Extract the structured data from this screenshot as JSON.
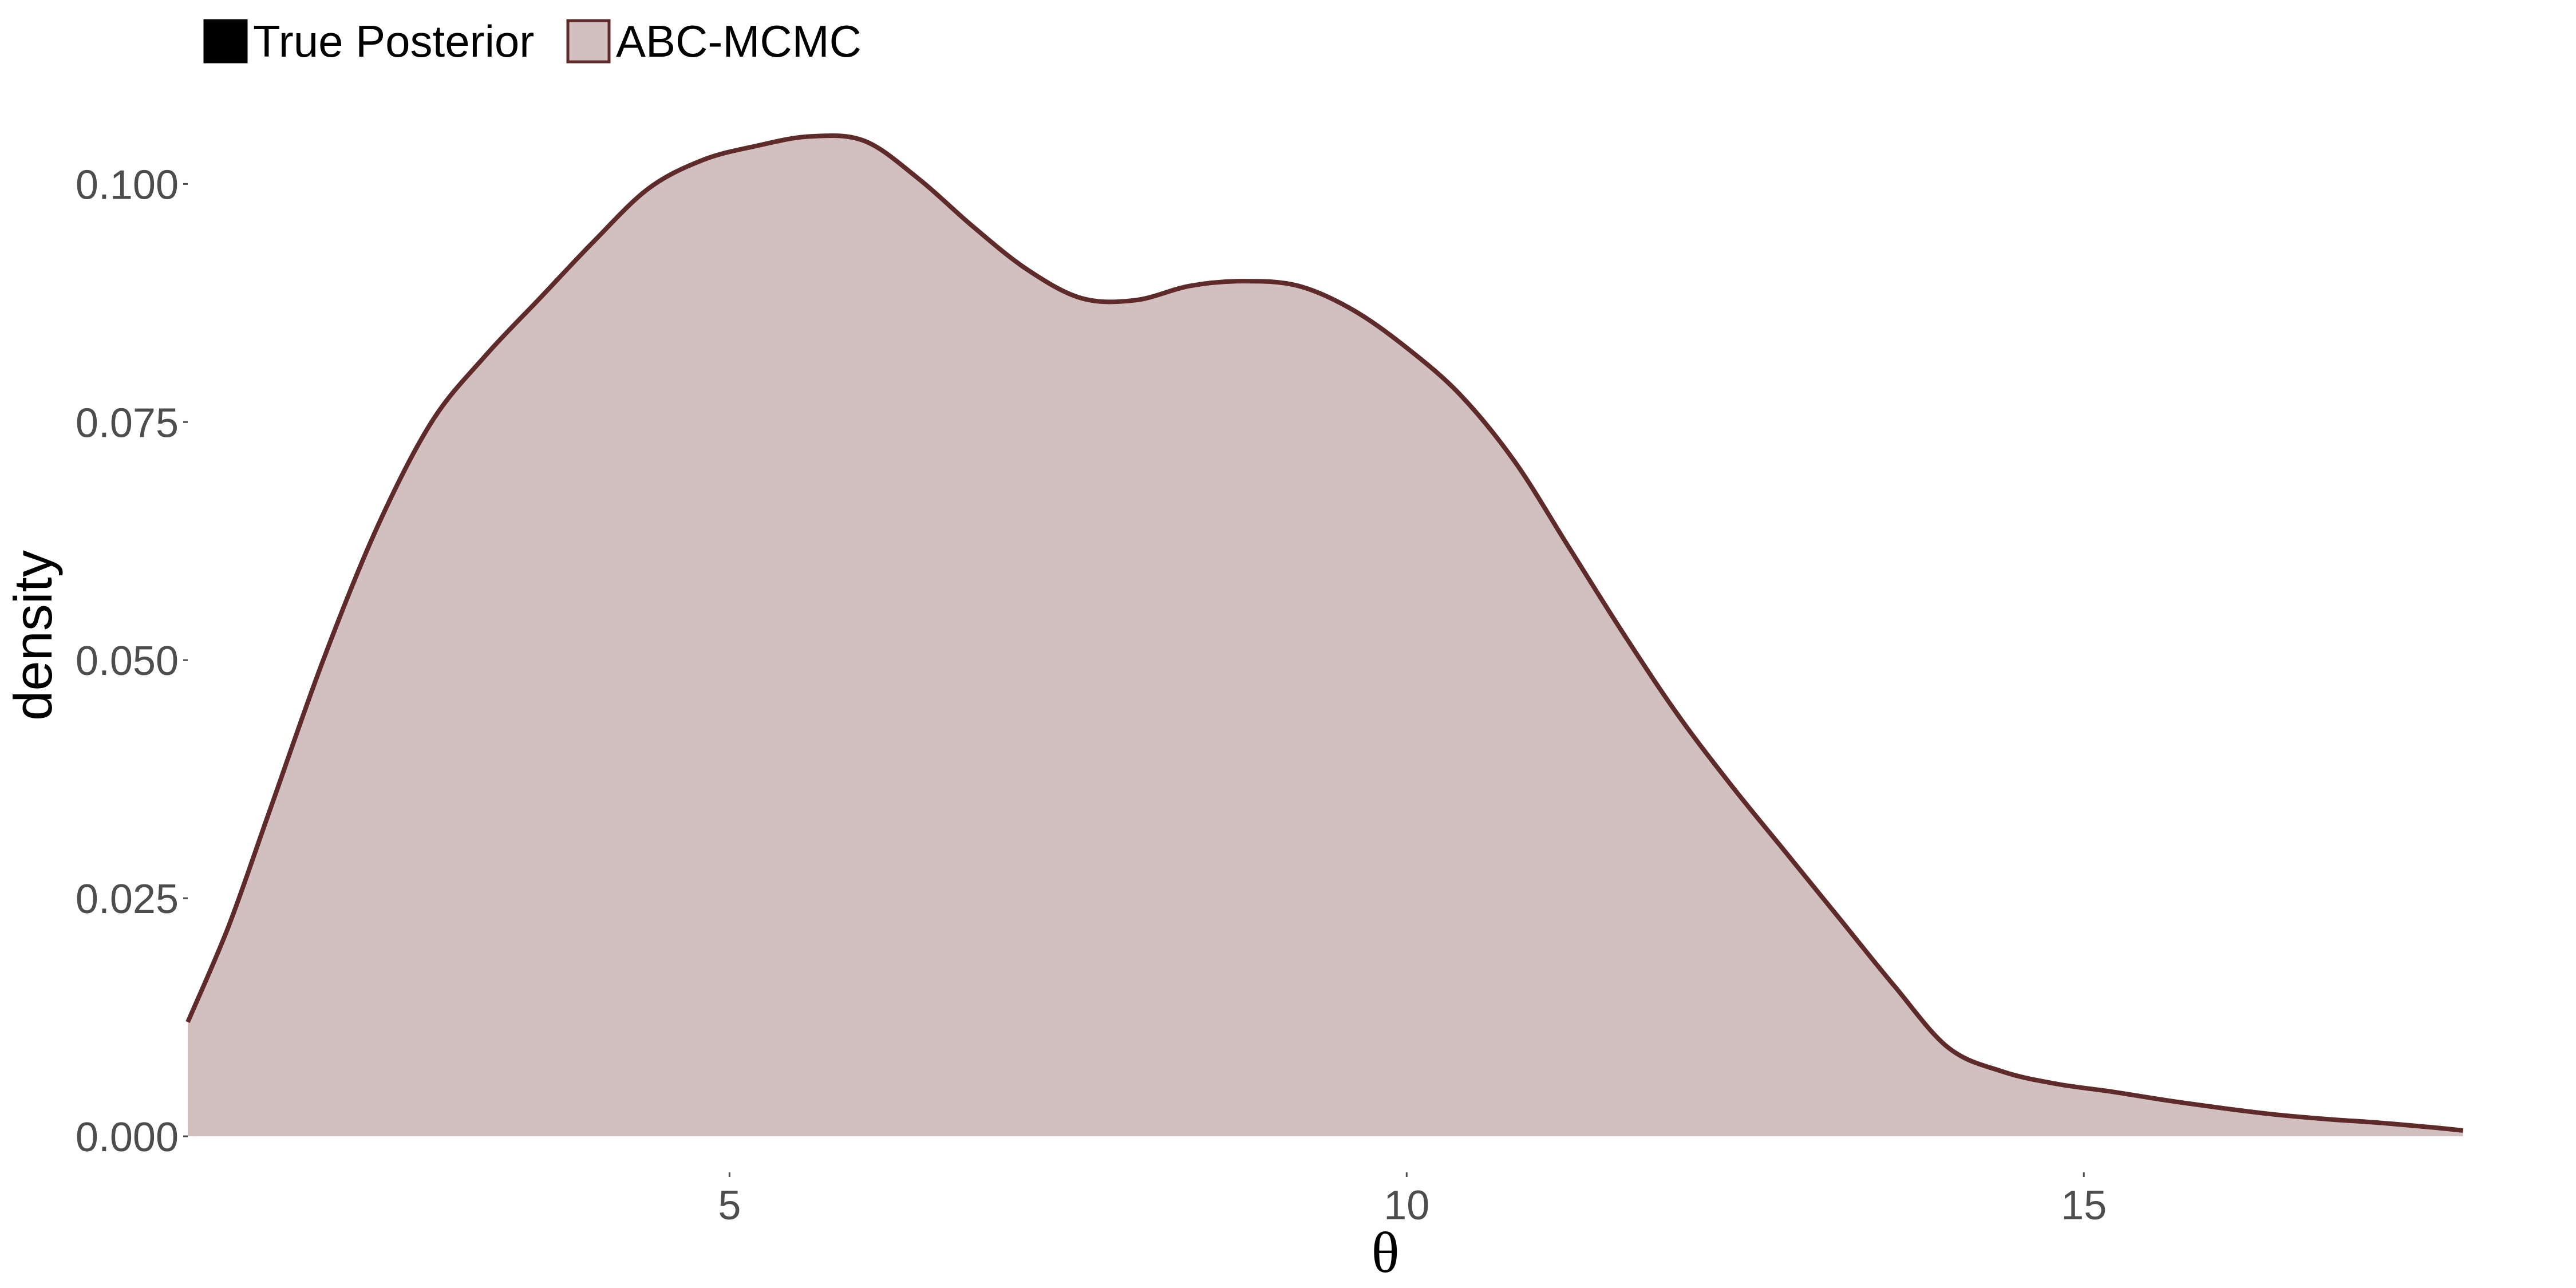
{
  "chart_data": {
    "type": "area",
    "title": "",
    "xlabel": "θ",
    "ylabel": "density",
    "xlim": [
      1,
      18
    ],
    "ylim": [
      0,
      0.11
    ],
    "x_ticks": [
      5,
      10,
      15
    ],
    "x_tick_labels": [
      "5",
      "10",
      "15"
    ],
    "y_ticks": [
      0,
      0.025,
      0.05,
      0.075,
      0.1
    ],
    "y_tick_labels": [
      "0.000",
      "0.025",
      "0.050",
      "0.075",
      "0.100"
    ],
    "grid": false,
    "legend": {
      "position": "top-left",
      "entries": [
        {
          "label": "True Posterior",
          "fill": "#000000",
          "stroke": "#000000"
        },
        {
          "label": "ABC-MCMC",
          "fill": "#d2c0c1",
          "stroke": "#5e2a2a"
        }
      ]
    },
    "series": [
      {
        "name": "ABC-MCMC",
        "fill": "#d2c0c1",
        "stroke": "#5e2a2a",
        "x": [
          1.0,
          1.3,
          1.6,
          2.0,
          2.4,
          2.8,
          3.2,
          3.6,
          4.0,
          4.4,
          4.8,
          5.2,
          5.6,
          6.0,
          6.4,
          6.8,
          7.2,
          7.6,
          8.0,
          8.4,
          8.8,
          9.2,
          9.6,
          10.0,
          10.4,
          10.8,
          11.2,
          11.6,
          12.0,
          12.4,
          12.8,
          13.2,
          13.6,
          14.0,
          14.4,
          14.8,
          15.2,
          15.6,
          16.0,
          16.4,
          16.8,
          17.2,
          17.6,
          17.8
        ],
        "y": [
          0.012,
          0.022,
          0.034,
          0.05,
          0.064,
          0.075,
          0.082,
          0.088,
          0.094,
          0.0995,
          0.1025,
          0.104,
          0.105,
          0.1045,
          0.1005,
          0.0955,
          0.091,
          0.088,
          0.0878,
          0.0893,
          0.0898,
          0.0893,
          0.0868,
          0.0828,
          0.0778,
          0.0708,
          0.0618,
          0.0528,
          0.0443,
          0.0368,
          0.0298,
          0.0228,
          0.0158,
          0.0093,
          0.0068,
          0.0055,
          0.0047,
          0.0038,
          0.003,
          0.0023,
          0.0018,
          0.0014,
          0.0009,
          0.0006
        ]
      }
    ]
  }
}
